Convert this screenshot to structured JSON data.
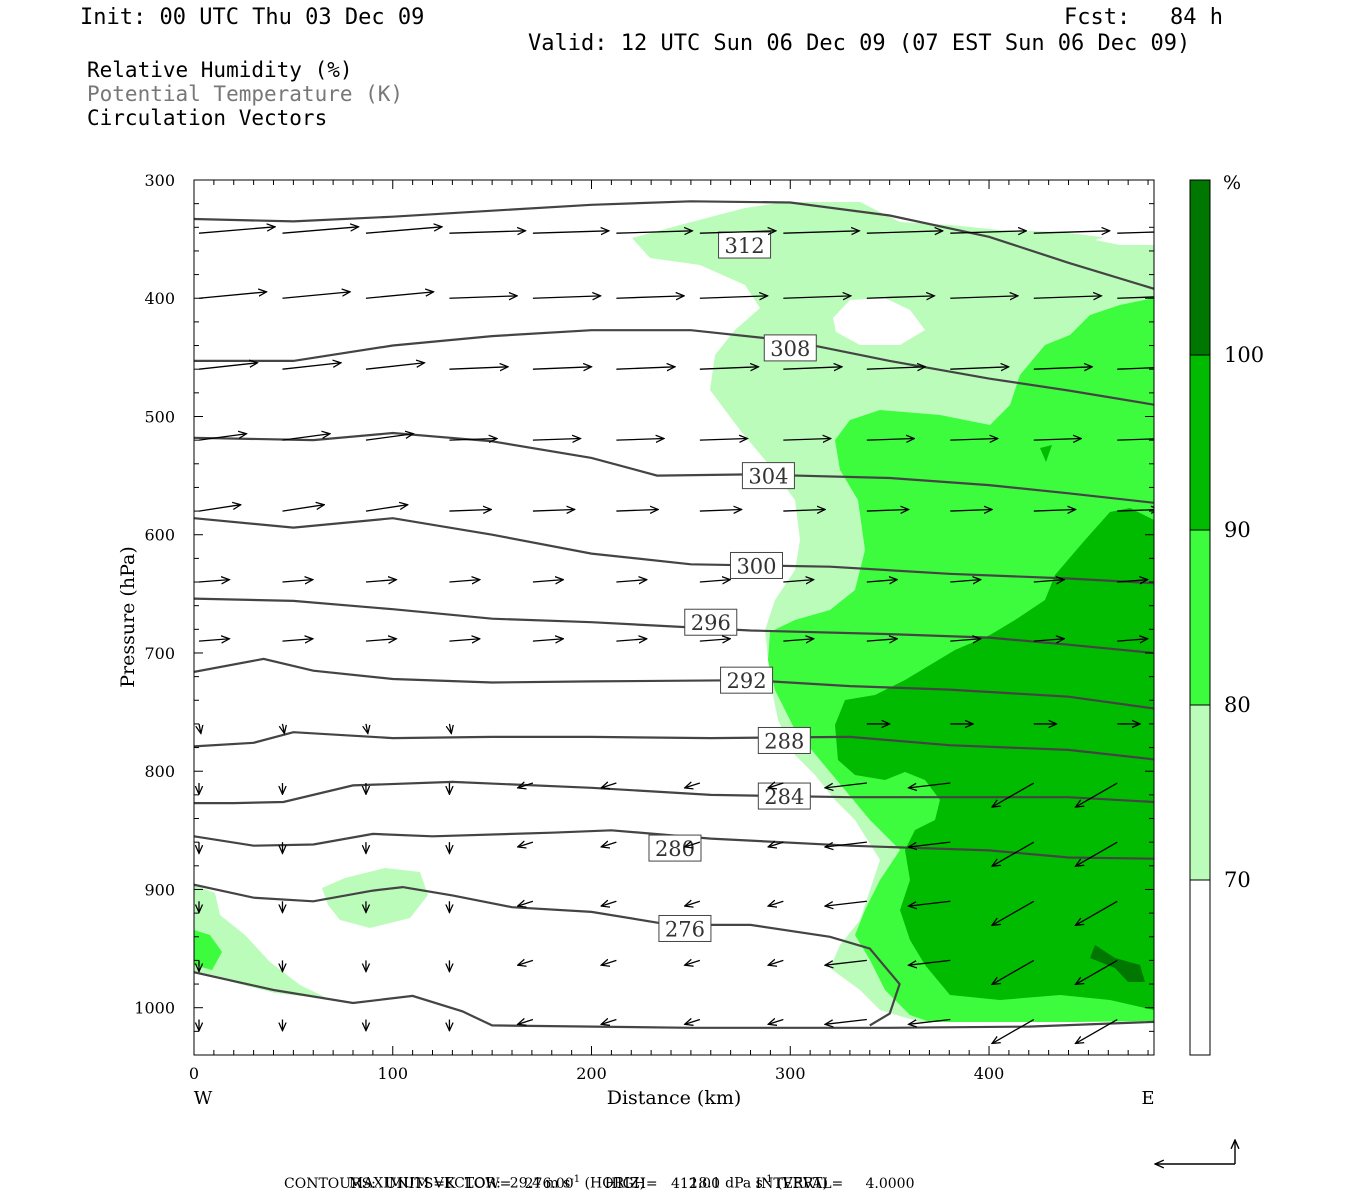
{
  "header": {
    "init": "Init: 00 UTC Thu 03 Dec 09",
    "fcst": "Fcst:   84 h",
    "valid": "Valid: 12 UTC Sun 06 Dec 09 (07 EST Sun 06 Dec 09)"
  },
  "legend_text": {
    "rh": "Relative Humidity (%)",
    "theta": "Potential Temperature (K)",
    "vectors": "Circulation Vectors"
  },
  "chart_data": {
    "type": "cross-section",
    "xlabel": "Distance (km)",
    "ylabel": "Pressure (hPa)",
    "xlim": [
      0,
      483
    ],
    "ylim": [
      1040,
      300
    ],
    "x_ticks": [
      0,
      100,
      200,
      300,
      400
    ],
    "y_ticks": [
      300,
      400,
      500,
      600,
      700,
      800,
      900,
      1000
    ],
    "x_end_labels": {
      "left": "W",
      "right": "E"
    },
    "colorbar": {
      "unit": "%",
      "levels": [
        70,
        80,
        90,
        100
      ],
      "colors": [
        "#ffffff",
        "#bbfcbb",
        "#3dfc3d",
        "#00bb00",
        "#007700"
      ]
    },
    "theta_contours": [
      {
        "label": "312",
        "label_pos": [
          277,
          355
        ],
        "points": [
          [
            0,
            333
          ],
          [
            50,
            335
          ],
          [
            100,
            331
          ],
          [
            150,
            326
          ],
          [
            200,
            321
          ],
          [
            250,
            318
          ],
          [
            300,
            319
          ],
          [
            350,
            330
          ],
          [
            400,
            348
          ],
          [
            440,
            370
          ],
          [
            483,
            392
          ]
        ]
      },
      {
        "label": "308",
        "label_pos": [
          300,
          442
        ],
        "points": [
          [
            0,
            453
          ],
          [
            50,
            453
          ],
          [
            100,
            440
          ],
          [
            150,
            432
          ],
          [
            200,
            427
          ],
          [
            250,
            427
          ],
          [
            300,
            436
          ],
          [
            350,
            453
          ],
          [
            400,
            468
          ],
          [
            440,
            478
          ],
          [
            483,
            490
          ]
        ]
      },
      {
        "label": "304",
        "label_pos": [
          289,
          550
        ],
        "points": [
          [
            0,
            518
          ],
          [
            60,
            520
          ],
          [
            100,
            514
          ],
          [
            150,
            521
          ],
          [
            200,
            535
          ],
          [
            233,
            550
          ],
          [
            280,
            549
          ],
          [
            350,
            552
          ],
          [
            400,
            558
          ],
          [
            440,
            565
          ],
          [
            483,
            573
          ]
        ]
      },
      {
        "label": "300",
        "label_pos": [
          283,
          626
        ],
        "points": [
          [
            0,
            586
          ],
          [
            50,
            594
          ],
          [
            100,
            586
          ],
          [
            150,
            600
          ],
          [
            200,
            616
          ],
          [
            250,
            625
          ],
          [
            320,
            627
          ],
          [
            380,
            633
          ],
          [
            440,
            637
          ],
          [
            483,
            641
          ]
        ]
      },
      {
        "label": "296",
        "label_pos": [
          260,
          674
        ],
        "points": [
          [
            0,
            654
          ],
          [
            50,
            656
          ],
          [
            100,
            663
          ],
          [
            150,
            671
          ],
          [
            200,
            674
          ],
          [
            280,
            681
          ],
          [
            350,
            684
          ],
          [
            400,
            687
          ],
          [
            440,
            693
          ],
          [
            483,
            700
          ]
        ]
      },
      {
        "label": "292",
        "label_pos": [
          278,
          723
        ],
        "points": [
          [
            0,
            716
          ],
          [
            35,
            705
          ],
          [
            60,
            715
          ],
          [
            100,
            722
          ],
          [
            150,
            725
          ],
          [
            200,
            724
          ],
          [
            280,
            723
          ],
          [
            330,
            728
          ],
          [
            380,
            731
          ],
          [
            440,
            737
          ],
          [
            483,
            747
          ]
        ]
      },
      {
        "label": "288",
        "label_pos": [
          297,
          774
        ],
        "points": [
          [
            0,
            779
          ],
          [
            30,
            776
          ],
          [
            50,
            767
          ],
          [
            100,
            772
          ],
          [
            150,
            771
          ],
          [
            200,
            771
          ],
          [
            260,
            772
          ],
          [
            330,
            771
          ],
          [
            380,
            778
          ],
          [
            440,
            782
          ],
          [
            483,
            790
          ]
        ]
      },
      {
        "label": "284",
        "label_pos": [
          297,
          821
        ],
        "points": [
          [
            0,
            827
          ],
          [
            20,
            827
          ],
          [
            45,
            826
          ],
          [
            80,
            812
          ],
          [
            130,
            809
          ],
          [
            200,
            814
          ],
          [
            260,
            820
          ],
          [
            330,
            822
          ],
          [
            380,
            822
          ],
          [
            440,
            822
          ],
          [
            483,
            826
          ]
        ]
      },
      {
        "label": "280",
        "label_pos": [
          242,
          865
        ],
        "points": [
          [
            0,
            855
          ],
          [
            30,
            863
          ],
          [
            60,
            862
          ],
          [
            90,
            853
          ],
          [
            120,
            855
          ],
          [
            180,
            852
          ],
          [
            210,
            850
          ],
          [
            260,
            857
          ],
          [
            330,
            863
          ],
          [
            400,
            867
          ],
          [
            440,
            873
          ],
          [
            483,
            874
          ]
        ]
      },
      {
        "label": "276",
        "label_pos": [
          247,
          933
        ],
        "points": [
          [
            0,
            896
          ],
          [
            30,
            907
          ],
          [
            60,
            910
          ],
          [
            90,
            901
          ],
          [
            105,
            898
          ],
          [
            130,
            905
          ],
          [
            160,
            915
          ],
          [
            200,
            919
          ],
          [
            240,
            930
          ],
          [
            280,
            930
          ],
          [
            320,
            940
          ],
          [
            340,
            950
          ],
          [
            355,
            980
          ],
          [
            350,
            1005
          ],
          [
            340,
            1015
          ]
        ]
      },
      {
        "label": "",
        "label_pos": null,
        "points": [
          [
            0,
            970
          ],
          [
            40,
            985
          ],
          [
            80,
            996
          ],
          [
            110,
            990
          ],
          [
            135,
            1003
          ],
          [
            150,
            1015
          ],
          [
            250,
            1017
          ],
          [
            350,
            1017
          ],
          [
            420,
            1016
          ],
          [
            483,
            1012
          ]
        ]
      }
    ],
    "rh_max_vector": {
      "horiz": "29.4",
      "horiz_unit": "m s",
      "vert": "18.1",
      "vert_unit": "dPa s"
    }
  },
  "footer": {
    "max_vector_label": "MAXIMUM VECTOR:",
    "max_horiz": "29.4 m s",
    "horiz_sup": "-1",
    "horiz_tag": "(HORIZ)",
    "max_vert": "18.1 dPa s",
    "vert_sup": "-1",
    "vert_tag": "(VERT)",
    "contours": "CONTOURS:  UNITS=K  LOW=   276.00       HIGH=   412.00        INTERVAL=     4.0000"
  }
}
